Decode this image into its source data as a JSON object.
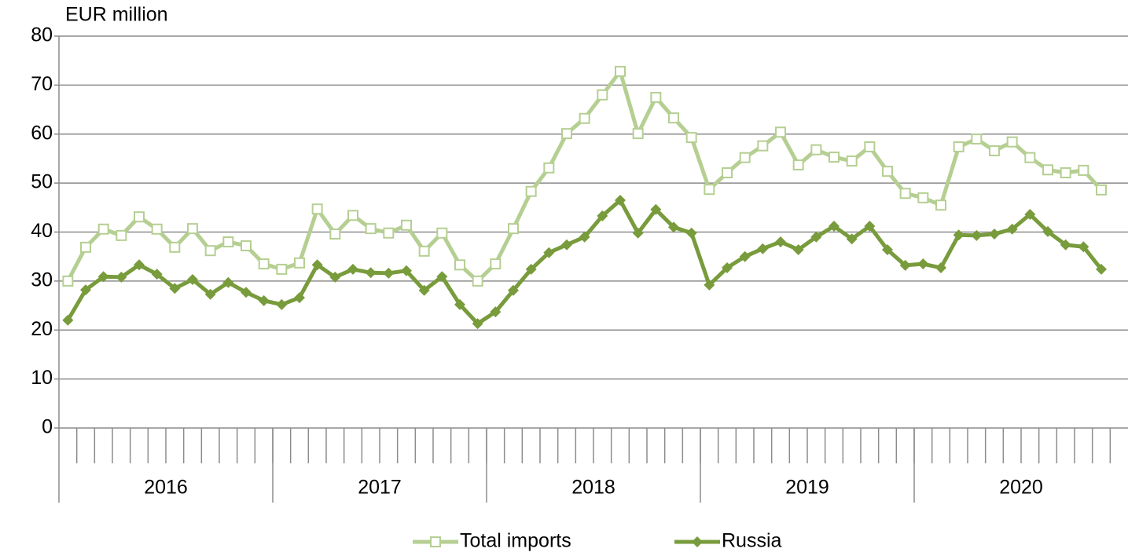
{
  "chart_data": {
    "type": "line",
    "y_axis_label": "EUR million",
    "categories": [
      null,
      null,
      null,
      null,
      null,
      null,
      null,
      null,
      null,
      null,
      null,
      null,
      null,
      null,
      null,
      null,
      null,
      null,
      null,
      null,
      null,
      null,
      null,
      null,
      null,
      null,
      null,
      null,
      null,
      null,
      null,
      null,
      null,
      null,
      null,
      null,
      null,
      null,
      null,
      null,
      null,
      null,
      null,
      null,
      null,
      null,
      null,
      null,
      null,
      null,
      null,
      null,
      null,
      null,
      null,
      null,
      null,
      null,
      null
    ],
    "groups": [
      {
        "label": "2016",
        "size": 12
      },
      {
        "label": "2017",
        "size": 12
      },
      {
        "label": "2018",
        "size": 12
      },
      {
        "label": "2019",
        "size": 12
      },
      {
        "label": "2020",
        "size": 11
      }
    ],
    "series": [
      {
        "name": "Total imports",
        "color": "#b5cf92",
        "marker": "square",
        "values": [
          30.0,
          36.9,
          40.6,
          39.3,
          43.1,
          40.6,
          36.9,
          40.7,
          36.2,
          38.0,
          37.2,
          33.5,
          32.4,
          33.7,
          44.7,
          39.6,
          43.4,
          40.7,
          39.8,
          41.4,
          36.1,
          39.8,
          33.3,
          30.0,
          33.5,
          40.7,
          48.3,
          53.1,
          60.1,
          63.2,
          68.0,
          72.8,
          60.1,
          67.5,
          63.3,
          59.3,
          48.7,
          52.1,
          55.2,
          57.6,
          60.4,
          53.7,
          56.8,
          55.3,
          54.5,
          57.4,
          52.4,
          47.9,
          47.0,
          45.5,
          57.4,
          59.0,
          56.6,
          58.4,
          55.2,
          52.7,
          52.1,
          52.6,
          48.6
        ]
      },
      {
        "name": "Russia",
        "color": "#789b3c",
        "marker": "diamond",
        "values": [
          22.0,
          28.2,
          30.9,
          30.8,
          33.3,
          31.4,
          28.5,
          30.3,
          27.3,
          29.7,
          27.7,
          26.0,
          25.2,
          26.6,
          33.3,
          30.8,
          32.4,
          31.7,
          31.6,
          32.1,
          28.1,
          30.9,
          25.2,
          21.3,
          23.7,
          28.1,
          32.4,
          35.8,
          37.4,
          39.0,
          43.3,
          46.5,
          39.8,
          44.6,
          41.0,
          39.8,
          29.2,
          32.7,
          35.0,
          36.6,
          38.0,
          36.4,
          39.0,
          41.2,
          38.6,
          41.2,
          36.4,
          33.2,
          33.5,
          32.7,
          39.4,
          39.3,
          39.6,
          40.6,
          43.6,
          40.1,
          37.4,
          37.0,
          32.4
        ]
      }
    ],
    "ylim": [
      0,
      80
    ],
    "yticks": [
      0,
      10,
      20,
      30,
      40,
      50,
      60,
      70,
      80
    ],
    "grid": true
  }
}
